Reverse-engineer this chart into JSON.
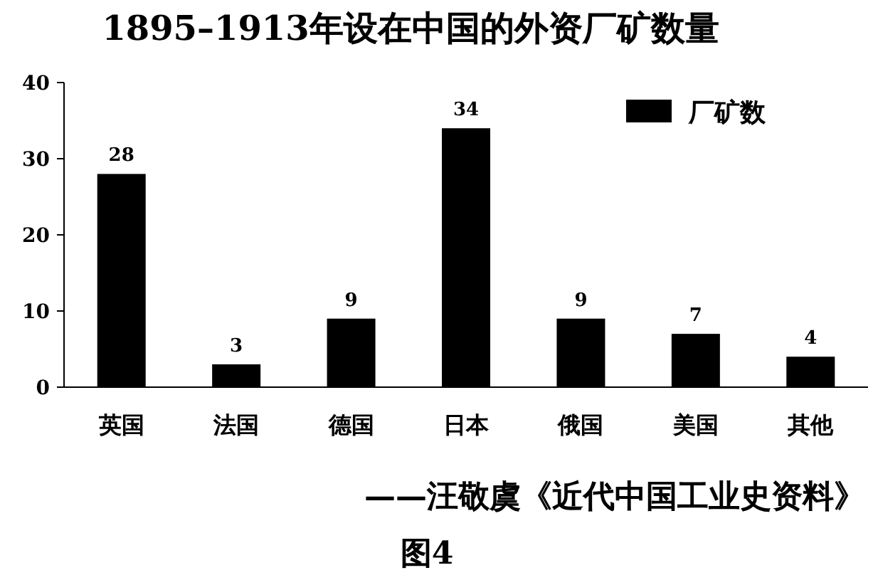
{
  "chart_data": {
    "type": "bar",
    "title": "1895–1913年设在中国的外资厂矿数量",
    "categories": [
      "英国",
      "法国",
      "德国",
      "日本",
      "俄国",
      "美国",
      "其他"
    ],
    "series": [
      {
        "name": "厂矿数",
        "color": "#000000",
        "values": [
          28,
          3,
          9,
          34,
          9,
          7,
          4
        ]
      }
    ],
    "ylim": [
      0,
      40
    ],
    "yticks": [
      0,
      10,
      20,
      30,
      40
    ],
    "data_labels": true,
    "legend": "top right",
    "grid": false,
    "annotations": [
      "——汪敬虞《近代中国工业史资料》",
      "图4"
    ]
  }
}
